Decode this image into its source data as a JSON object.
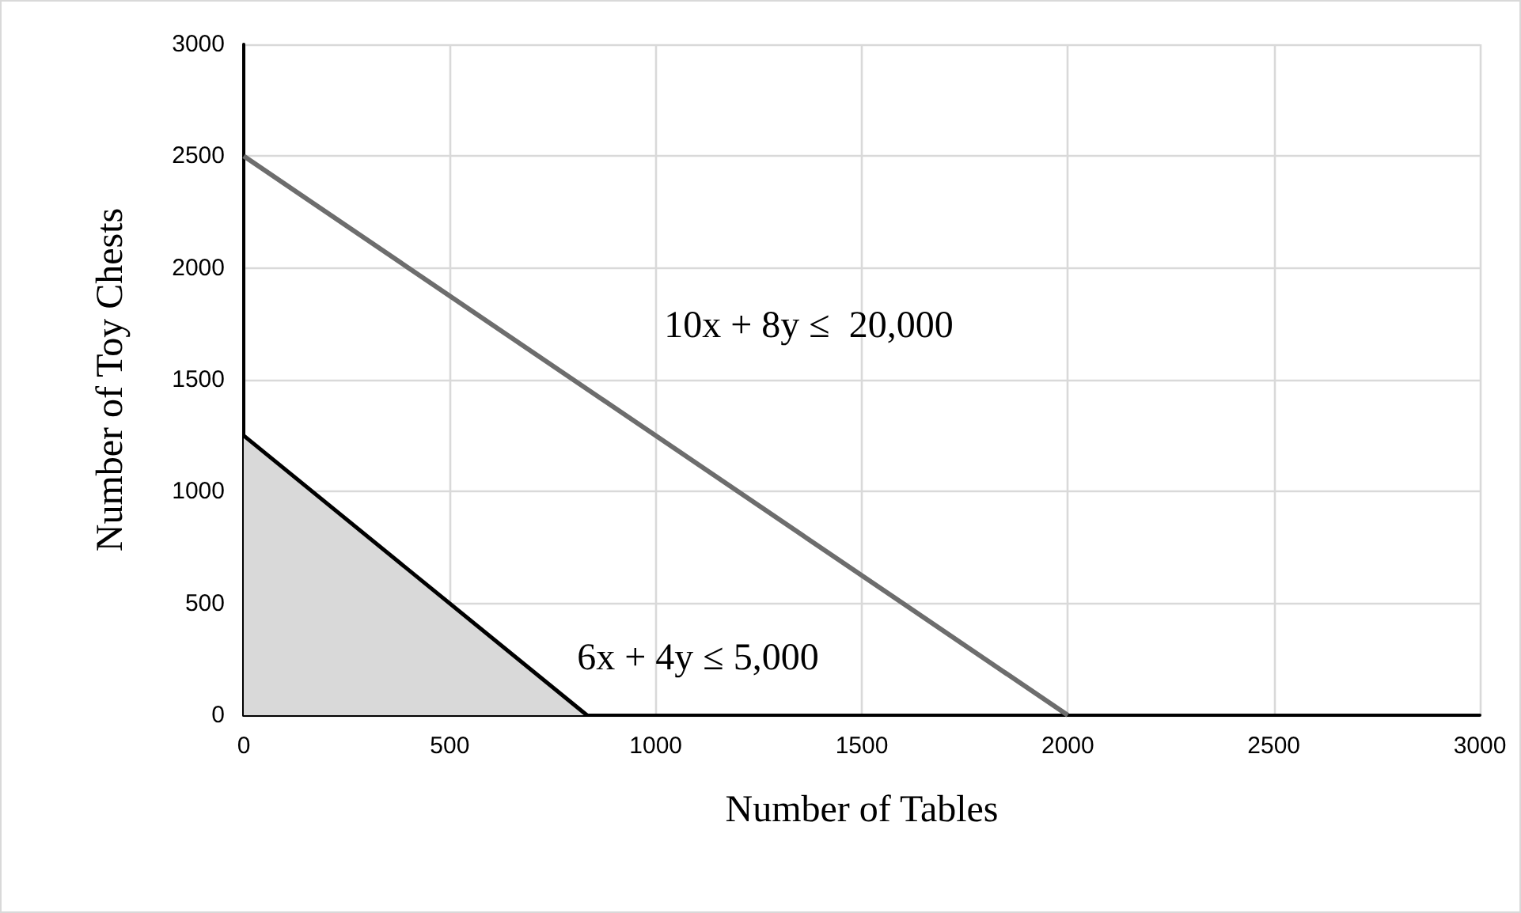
{
  "chart_data": {
    "type": "line",
    "xlabel": "Number of Tables",
    "ylabel": "Number of Toy Chests",
    "series": [
      {
        "color": "#6d6d6d",
        "x": [
          0,
          2000
        ],
        "values": [
          2500,
          0
        ]
      },
      {
        "type": "area",
        "color": "#d9d9d9",
        "x": [
          0,
          833
        ],
        "values": [
          1250,
          0
        ]
      }
    ],
    "annotations": [
      "10x + 8y ≤  20,000",
      "6x + 4y ≤ 5,000"
    ],
    "xlim": [
      0,
      3000
    ],
    "xticks": [
      0,
      500,
      1000,
      1500,
      2000,
      2500,
      3000
    ],
    "ylim": [
      0,
      3000
    ],
    "yticks": [
      0,
      500,
      1000,
      1500,
      2000,
      2500,
      3000
    ],
    "grid": true,
    "marker": "none",
    "line_style": "solid"
  }
}
